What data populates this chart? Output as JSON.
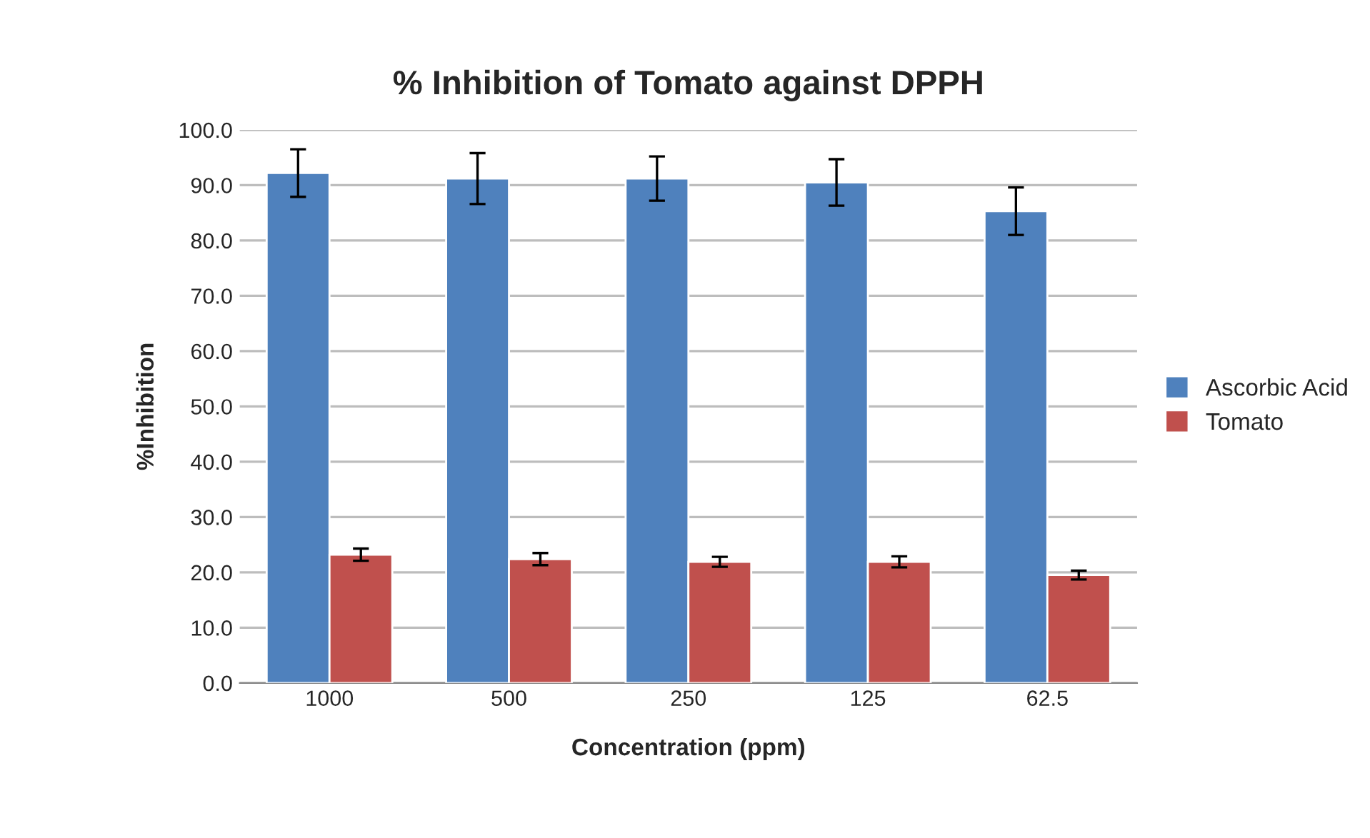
{
  "chart_data": {
    "type": "bar",
    "title": "% Inhibition of Tomato against DPPH",
    "xlabel": "Concentration (ppm)",
    "ylabel": "%Inhibition",
    "categories": [
      "1000",
      "500",
      "250",
      "125",
      "62.5"
    ],
    "series": [
      {
        "name": "Ascorbic Acid",
        "color": "#4f81bd",
        "values": [
          92.2,
          91.2,
          91.2,
          90.5,
          85.3
        ],
        "errors": [
          4.3,
          4.6,
          4.0,
          4.2,
          4.3
        ]
      },
      {
        "name": "Tomato",
        "color": "#c0504d",
        "values": [
          23.2,
          22.4,
          21.9,
          21.9,
          19.5
        ],
        "errors": [
          1.1,
          1.1,
          0.9,
          1.0,
          0.8
        ]
      }
    ],
    "ylim": [
      0,
      100
    ],
    "yticks": [
      {
        "value": 0,
        "label": "0.0"
      },
      {
        "value": 10,
        "label": "10.0"
      },
      {
        "value": 20,
        "label": "20.0"
      },
      {
        "value": 30,
        "label": "30.0"
      },
      {
        "value": 40,
        "label": "40.0"
      },
      {
        "value": 50,
        "label": "50.0"
      },
      {
        "value": 60,
        "label": "60.0"
      },
      {
        "value": 70,
        "label": "70.0"
      },
      {
        "value": 80,
        "label": "80.0"
      },
      {
        "value": 90,
        "label": "90.0"
      },
      {
        "value": 100,
        "label": "100.0"
      }
    ],
    "grid": "y",
    "legend": "right"
  }
}
